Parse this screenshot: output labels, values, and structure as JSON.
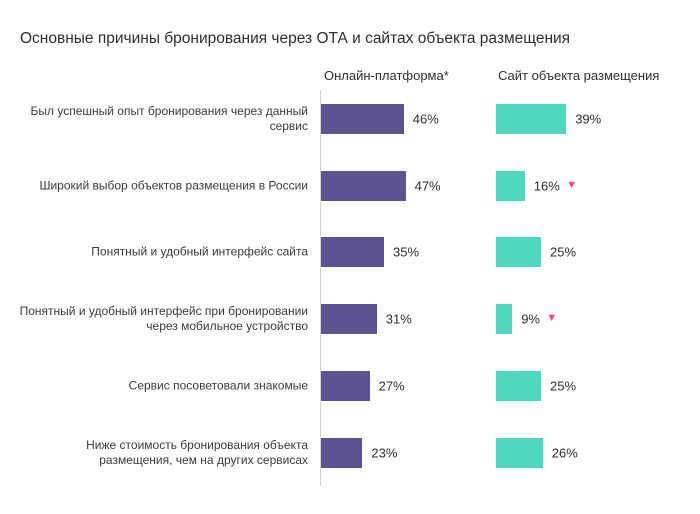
{
  "chart_data": {
    "type": "bar",
    "orientation": "horizontal",
    "title": "Основные причины бронирования через ОТА и сайтах объекта размещения",
    "categories": [
      "Был успешный опыт бронирования через данный сервис",
      "Широкий выбор объектов размещения в России",
      "Понятный и удобный интерфейс сайта",
      "Понятный и удобный интерфейс при бронировании через мобильное устройство",
      "Сервис посоветовали знакомые",
      "Ниже стоимость бронирования объекта размещения, чем на других сервисах"
    ],
    "series": [
      {
        "name": "Онлайн-платформа*",
        "color": "#5b5490",
        "values": [
          46,
          47,
          35,
          31,
          27,
          23
        ],
        "labels": [
          "46%",
          "47%",
          "35%",
          "31%",
          "27%",
          "23%"
        ]
      },
      {
        "name": "Сайт объекта размещения",
        "color": "#4fd8bd",
        "values": [
          39,
          16,
          25,
          9,
          25,
          26
        ],
        "labels": [
          "39%",
          "16%",
          "25%",
          "9%",
          "25%",
          "26%"
        ],
        "decrease_markers": [
          false,
          true,
          false,
          true,
          false,
          false
        ],
        "decrease_marker_color": "#e8536f",
        "decrease_icon": "down-triangle-icon"
      }
    ],
    "unit": "%",
    "xlim": [
      0,
      100
    ],
    "grid": false,
    "legend_position": "top"
  }
}
